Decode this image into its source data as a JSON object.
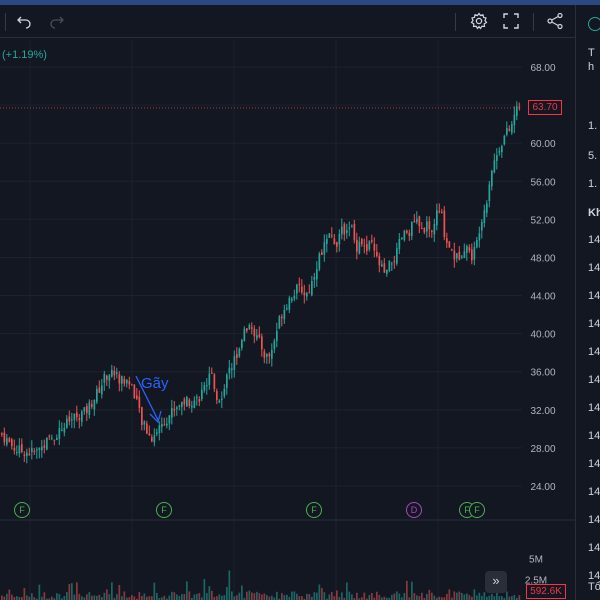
{
  "toolbar": {
    "icons": [
      "undo-icon",
      "redo-icon",
      "settings-icon",
      "fullscreen-icon",
      "share-icon"
    ]
  },
  "change_text": "(+1.19%)",
  "price_label": "63.70",
  "volume_label": "592.6K",
  "annotation_text": "Gãy",
  "scroll_label": "»",
  "markers": [
    {
      "label": "F",
      "type": "f"
    },
    {
      "label": "F",
      "type": "f"
    },
    {
      "label": "F",
      "type": "f"
    },
    {
      "label": "D",
      "type": "d"
    },
    {
      "label": "F",
      "type": "f"
    },
    {
      "label": "F",
      "type": "f"
    }
  ],
  "right_panel": {
    "lines": [
      "T",
      "h",
      "1.",
      "5.",
      "1.",
      "Kh",
      "14",
      "14",
      "14",
      "14",
      "14",
      "14",
      "14",
      "14",
      "14",
      "14",
      "14",
      "14",
      "14",
      "Tổ"
    ]
  },
  "colors": {
    "up": "#26a69a",
    "down": "#ef5350",
    "background": "#131722",
    "grid": "#1e222d",
    "axis_text": "#b2b5be",
    "annotation": "#2962ff"
  },
  "chart_data": {
    "type": "candlestick",
    "price_axis": {
      "ticks": [
        "68.00",
        "64.00",
        "60.00",
        "56.00",
        "52.00",
        "48.00",
        "44.00",
        "40.00",
        "36.00",
        "32.00",
        "28.00",
        "24.00"
      ],
      "range": [
        21.5,
        70
      ]
    },
    "volume_axis": {
      "ticks": [
        "5M",
        "2.5M"
      ],
      "max": 7.5
    },
    "last_price": 63.7,
    "last_volume": "592.6K",
    "close_path": [
      [
        0,
        29.5
      ],
      [
        8,
        28.6
      ],
      [
        15,
        27.8
      ],
      [
        25,
        27.6
      ],
      [
        35,
        27.5
      ],
      [
        45,
        28.6
      ],
      [
        55,
        29.4
      ],
      [
        65,
        30.5
      ],
      [
        75,
        31.3
      ],
      [
        85,
        31.8
      ],
      [
        95,
        33.5
      ],
      [
        105,
        35.6
      ],
      [
        112,
        36.0
      ],
      [
        120,
        35.1
      ],
      [
        128,
        35.0
      ],
      [
        135,
        33.5
      ],
      [
        140,
        30.8
      ],
      [
        145,
        30.0
      ],
      [
        150,
        29.0
      ],
      [
        155,
        29.6
      ],
      [
        160,
        30.5
      ],
      [
        165,
        31.0
      ],
      [
        172,
        32.0
      ],
      [
        180,
        32.8
      ],
      [
        188,
        33.0
      ],
      [
        195,
        33.0
      ],
      [
        200,
        33.6
      ],
      [
        205,
        34.5
      ],
      [
        210,
        36.0
      ],
      [
        215,
        33.5
      ],
      [
        220,
        33.3
      ],
      [
        225,
        35.2
      ],
      [
        230,
        36.8
      ],
      [
        235,
        37.5
      ],
      [
        240,
        39.5
      ],
      [
        245,
        40.5
      ],
      [
        250,
        40.8
      ],
      [
        255,
        39.8
      ],
      [
        260,
        38.8
      ],
      [
        265,
        37.5
      ],
      [
        270,
        37.8
      ],
      [
        275,
        40.0
      ],
      [
        280,
        42.0
      ],
      [
        285,
        43.0
      ],
      [
        290,
        44.0
      ],
      [
        295,
        44.5
      ],
      [
        300,
        44.8
      ],
      [
        305,
        44.0
      ],
      [
        310,
        45.0
      ],
      [
        315,
        47.0
      ],
      [
        320,
        48.5
      ],
      [
        325,
        49.5
      ],
      [
        330,
        50.2
      ],
      [
        335,
        49.5
      ],
      [
        340,
        50.5
      ],
      [
        345,
        51.2
      ],
      [
        350,
        51.5
      ],
      [
        355,
        49.0
      ],
      [
        360,
        50.0
      ],
      [
        365,
        48.5
      ],
      [
        370,
        49.5
      ],
      [
        375,
        48.0
      ],
      [
        380,
        47.0
      ],
      [
        385,
        46.0
      ],
      [
        390,
        47.5
      ],
      [
        395,
        48.0
      ],
      [
        400,
        50.0
      ],
      [
        405,
        50.5
      ],
      [
        410,
        51.0
      ],
      [
        415,
        52.0
      ],
      [
        420,
        50.5
      ],
      [
        425,
        51.5
      ],
      [
        430,
        50.0
      ],
      [
        435,
        52.5
      ],
      [
        440,
        52.8
      ],
      [
        445,
        49.8
      ],
      [
        450,
        49.0
      ],
      [
        455,
        47.8
      ],
      [
        460,
        48.5
      ],
      [
        465,
        49.5
      ],
      [
        470,
        48.0
      ],
      [
        475,
        49.0
      ],
      [
        480,
        52.0
      ],
      [
        485,
        53.5
      ],
      [
        490,
        57.0
      ],
      [
        495,
        58.5
      ],
      [
        500,
        60.0
      ],
      [
        505,
        61.0
      ],
      [
        510,
        61.5
      ],
      [
        515,
        63.5
      ],
      [
        520,
        63.7
      ]
    ]
  }
}
